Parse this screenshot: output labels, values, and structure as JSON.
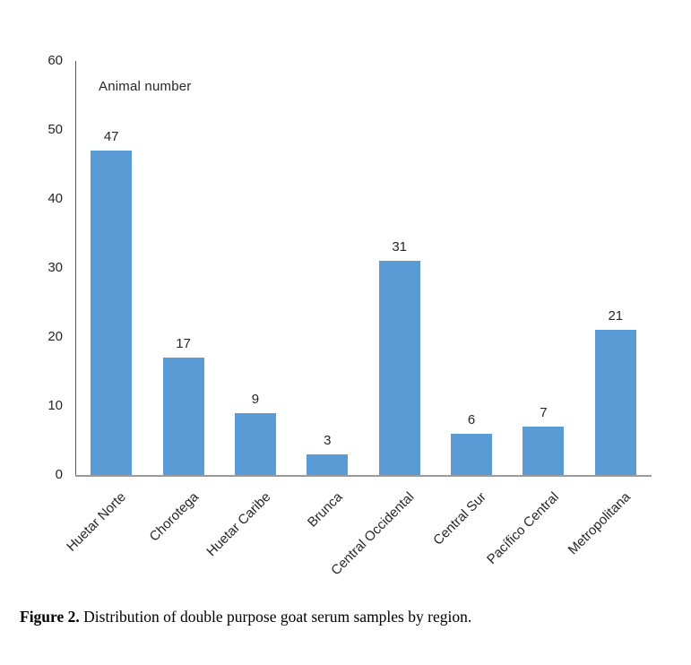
{
  "chart_data": {
    "type": "bar",
    "title": "Animal number",
    "categories": [
      "Huetar Norte",
      "Chorotega",
      "Huetar Caribe",
      "Brunca",
      "Central Occidental",
      "Central Sur",
      "Pacífico Central",
      "Metropolitana"
    ],
    "values": [
      47,
      17,
      9,
      3,
      31,
      6,
      7,
      21
    ],
    "xlabel": "",
    "ylabel": "",
    "ylim": [
      0,
      60
    ],
    "yticks": [
      0,
      10,
      20,
      30,
      40,
      50,
      60
    ],
    "bar_color": "#5B9BD5",
    "grid": false,
    "legend": "none",
    "value_labels_shown": true,
    "x_label_rotation_deg": -45
  },
  "caption": {
    "label": "Figure 2.",
    "text": " Distribution of double purpose goat serum samples by region."
  }
}
